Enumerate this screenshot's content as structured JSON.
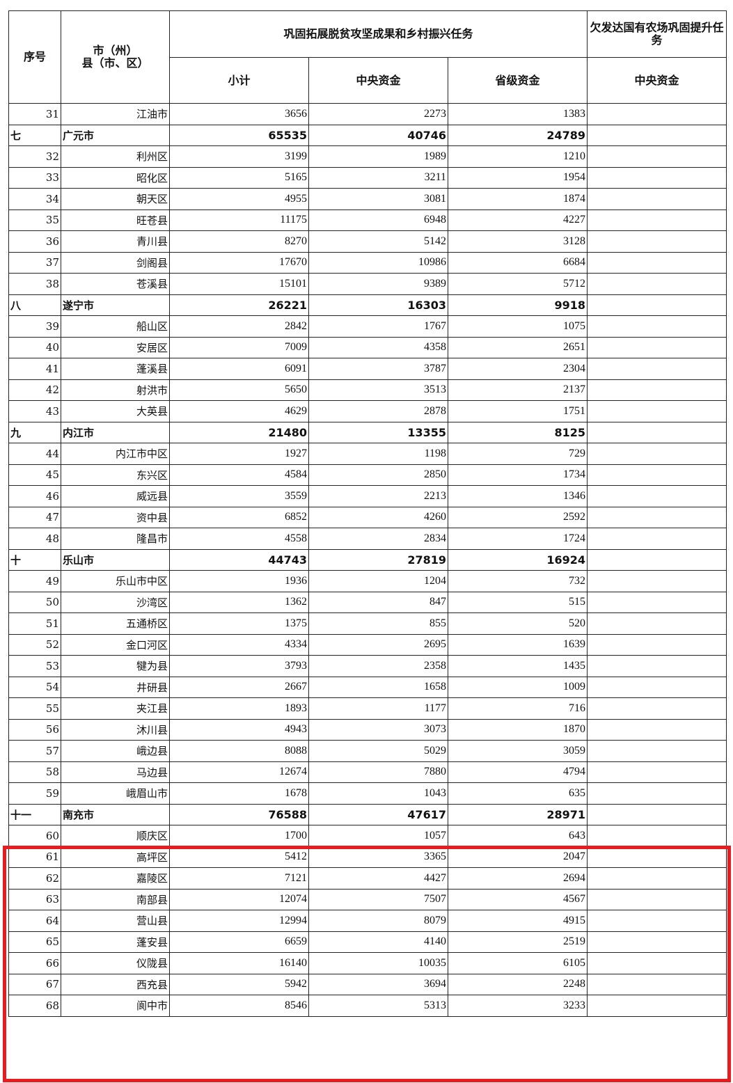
{
  "header": {
    "seq": "序号",
    "region_line1": "市（州）",
    "region_line2": "县（市、区）",
    "group1": "巩固拓展脱贫攻坚成果和乡村振兴任务",
    "group2": "欠发达国有农场巩固提升任务",
    "subtotal": "小计",
    "central": "中央资金",
    "provincial": "省级资金",
    "farm_central": "中央资金"
  },
  "highlight_color": "#e81b1e",
  "rows": [
    {
      "seq": "31",
      "name": "江油市",
      "subtotal": "3656",
      "central": "2273",
      "provincial": "1383",
      "city": false
    },
    {
      "seq": "七",
      "name": "广元市",
      "subtotal": "65535",
      "central": "40746",
      "provincial": "24789",
      "city": true
    },
    {
      "seq": "32",
      "name": "利州区",
      "subtotal": "3199",
      "central": "1989",
      "provincial": "1210",
      "city": false
    },
    {
      "seq": "33",
      "name": "昭化区",
      "subtotal": "5165",
      "central": "3211",
      "provincial": "1954",
      "city": false
    },
    {
      "seq": "34",
      "name": "朝天区",
      "subtotal": "4955",
      "central": "3081",
      "provincial": "1874",
      "city": false
    },
    {
      "seq": "35",
      "name": "旺苍县",
      "subtotal": "11175",
      "central": "6948",
      "provincial": "4227",
      "city": false
    },
    {
      "seq": "36",
      "name": "青川县",
      "subtotal": "8270",
      "central": "5142",
      "provincial": "3128",
      "city": false
    },
    {
      "seq": "37",
      "name": "剑阁县",
      "subtotal": "17670",
      "central": "10986",
      "provincial": "6684",
      "city": false
    },
    {
      "seq": "38",
      "name": "苍溪县",
      "subtotal": "15101",
      "central": "9389",
      "provincial": "5712",
      "city": false
    },
    {
      "seq": "八",
      "name": "遂宁市",
      "subtotal": "26221",
      "central": "16303",
      "provincial": "9918",
      "city": true
    },
    {
      "seq": "39",
      "name": "船山区",
      "subtotal": "2842",
      "central": "1767",
      "provincial": "1075",
      "city": false
    },
    {
      "seq": "40",
      "name": "安居区",
      "subtotal": "7009",
      "central": "4358",
      "provincial": "2651",
      "city": false
    },
    {
      "seq": "41",
      "name": "蓬溪县",
      "subtotal": "6091",
      "central": "3787",
      "provincial": "2304",
      "city": false
    },
    {
      "seq": "42",
      "name": "射洪市",
      "subtotal": "5650",
      "central": "3513",
      "provincial": "2137",
      "city": false
    },
    {
      "seq": "43",
      "name": "大英县",
      "subtotal": "4629",
      "central": "2878",
      "provincial": "1751",
      "city": false
    },
    {
      "seq": "九",
      "name": "内江市",
      "subtotal": "21480",
      "central": "13355",
      "provincial": "8125",
      "city": true
    },
    {
      "seq": "44",
      "name": "内江市中区",
      "subtotal": "1927",
      "central": "1198",
      "provincial": "729",
      "city": false
    },
    {
      "seq": "45",
      "name": "东兴区",
      "subtotal": "4584",
      "central": "2850",
      "provincial": "1734",
      "city": false
    },
    {
      "seq": "46",
      "name": "威远县",
      "subtotal": "3559",
      "central": "2213",
      "provincial": "1346",
      "city": false
    },
    {
      "seq": "47",
      "name": "资中县",
      "subtotal": "6852",
      "central": "4260",
      "provincial": "2592",
      "city": false
    },
    {
      "seq": "48",
      "name": "隆昌市",
      "subtotal": "4558",
      "central": "2834",
      "provincial": "1724",
      "city": false
    },
    {
      "seq": "十",
      "name": "乐山市",
      "subtotal": "44743",
      "central": "27819",
      "provincial": "16924",
      "city": true
    },
    {
      "seq": "49",
      "name": "乐山市中区",
      "subtotal": "1936",
      "central": "1204",
      "provincial": "732",
      "city": false
    },
    {
      "seq": "50",
      "name": "沙湾区",
      "subtotal": "1362",
      "central": "847",
      "provincial": "515",
      "city": false
    },
    {
      "seq": "51",
      "name": "五通桥区",
      "subtotal": "1375",
      "central": "855",
      "provincial": "520",
      "city": false
    },
    {
      "seq": "52",
      "name": "金口河区",
      "subtotal": "4334",
      "central": "2695",
      "provincial": "1639",
      "city": false
    },
    {
      "seq": "53",
      "name": "犍为县",
      "subtotal": "3793",
      "central": "2358",
      "provincial": "1435",
      "city": false
    },
    {
      "seq": "54",
      "name": "井研县",
      "subtotal": "2667",
      "central": "1658",
      "provincial": "1009",
      "city": false
    },
    {
      "seq": "55",
      "name": "夹江县",
      "subtotal": "1893",
      "central": "1177",
      "provincial": "716",
      "city": false
    },
    {
      "seq": "56",
      "name": "沐川县",
      "subtotal": "4943",
      "central": "3073",
      "provincial": "1870",
      "city": false
    },
    {
      "seq": "57",
      "name": "峨边县",
      "subtotal": "8088",
      "central": "5029",
      "provincial": "3059",
      "city": false
    },
    {
      "seq": "58",
      "name": "马边县",
      "subtotal": "12674",
      "central": "7880",
      "provincial": "4794",
      "city": false
    },
    {
      "seq": "59",
      "name": "峨眉山市",
      "subtotal": "1678",
      "central": "1043",
      "provincial": "635",
      "city": false
    },
    {
      "seq": "十一",
      "name": "南充市",
      "subtotal": "76588",
      "central": "47617",
      "provincial": "28971",
      "city": true
    },
    {
      "seq": "60",
      "name": "顺庆区",
      "subtotal": "1700",
      "central": "1057",
      "provincial": "643",
      "city": false
    },
    {
      "seq": "61",
      "name": "高坪区",
      "subtotal": "5412",
      "central": "3365",
      "provincial": "2047",
      "city": false
    },
    {
      "seq": "62",
      "name": "嘉陵区",
      "subtotal": "7121",
      "central": "4427",
      "provincial": "2694",
      "city": false
    },
    {
      "seq": "63",
      "name": "南部县",
      "subtotal": "12074",
      "central": "7507",
      "provincial": "4567",
      "city": false
    },
    {
      "seq": "64",
      "name": "营山县",
      "subtotal": "12994",
      "central": "8079",
      "provincial": "4915",
      "city": false
    },
    {
      "seq": "65",
      "name": "蓬安县",
      "subtotal": "6659",
      "central": "4140",
      "provincial": "2519",
      "city": false
    },
    {
      "seq": "66",
      "name": "仪陇县",
      "subtotal": "16140",
      "central": "10035",
      "provincial": "6105",
      "city": false
    },
    {
      "seq": "67",
      "name": "西充县",
      "subtotal": "5942",
      "central": "3694",
      "provincial": "2248",
      "city": false
    },
    {
      "seq": "68",
      "name": "阆中市",
      "subtotal": "8546",
      "central": "5313",
      "provincial": "3233",
      "city": false
    }
  ]
}
